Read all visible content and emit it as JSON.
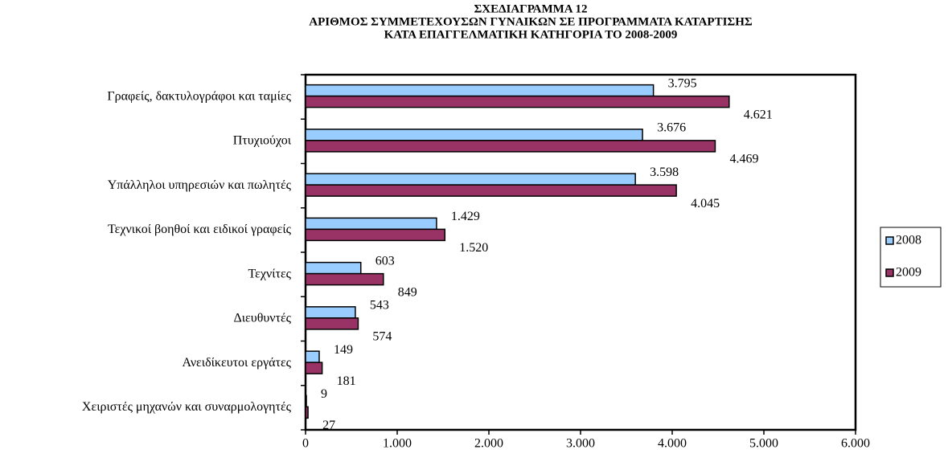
{
  "chart_data": {
    "type": "hbar",
    "title": [
      "ΣΧΕΔΙΑΓΡΑΜΜΑ 12",
      "ΑΡΙΘΜΟΣ ΣΥΜΜΕΤΕΧΟΥΣΩΝ ΓΥΝΑΙΚΩΝ ΣΕ ΠΡΟΓΡΑΜΜΑΤΑ ΚΑΤΑΡΤΙΣΗΣ",
      "ΚΑΤΑ ΕΠΑΓΓΕΛΜΑΤΙΚΗ ΚΑΤΗΓΟΡΙΑ ΤΟ 2008-2009"
    ],
    "categories": [
      "Γραφείς, δακτυλογράφοι και ταμίες",
      "Πτυχιούχοι",
      "Υπάλληλοι υπηρεσιών και πωλητές",
      "Τεχνικοί βοηθοί και ειδικοί γραφείς",
      "Τεχνίτες",
      "Διευθυντές",
      "Ανειδίκευτοι εργάτες",
      "Χειριστές μηχανών και συναρμολογητές"
    ],
    "series": [
      {
        "name": "2008",
        "color": "#99ccff",
        "values": [
          3795,
          3676,
          3598,
          1429,
          603,
          543,
          149,
          9
        ],
        "value_labels": [
          "3.795",
          "3.676",
          "3.598",
          "1.429",
          "603",
          "543",
          "149",
          "9"
        ]
      },
      {
        "name": "2009",
        "color": "#993366",
        "values": [
          4621,
          4469,
          4045,
          1520,
          849,
          574,
          181,
          27
        ],
        "value_labels": [
          "4.621",
          "4.469",
          "4.045",
          "1.520",
          "849",
          "574",
          "181",
          "27"
        ]
      }
    ],
    "xlim": [
      0,
      6000
    ],
    "xticks": [
      0,
      {
        "value": 1000,
        "label": "1.000"
      },
      {
        "value": 2000,
        "label": "2.000"
      },
      {
        "value": 3000,
        "label": "3.000"
      },
      {
        "value": 4000,
        "label": "4.000"
      },
      {
        "value": 5000,
        "label": "5.000"
      },
      {
        "value": 6000,
        "label": "6.000"
      }
    ],
    "legend": "right"
  }
}
